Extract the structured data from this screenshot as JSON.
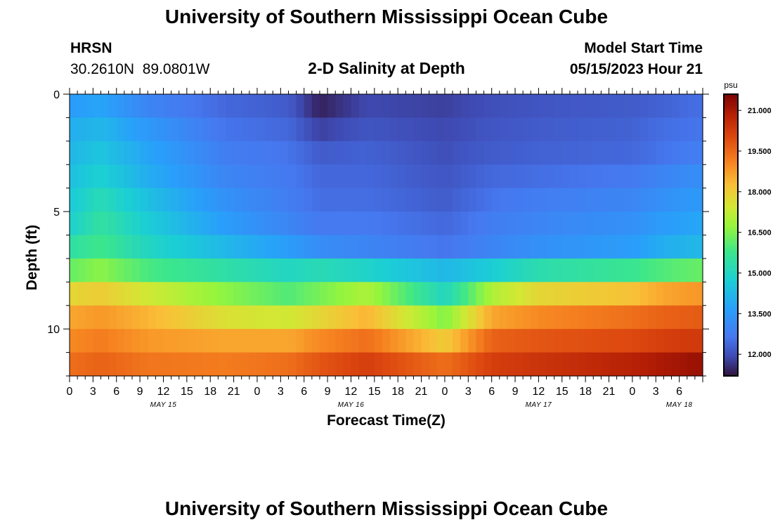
{
  "page": {
    "title": "University of Southern Mississippi Ocean Cube",
    "station_id": "HRSN",
    "coordinates": "30.2610N  89.0801W",
    "model_start_label": "Model Start Time",
    "model_start_value": "05/15/2023 Hour 21",
    "subtitle": "2-D Salinity at Depth",
    "footer_title": "University of Southern Mississippi Ocean Cube"
  },
  "chart_data": {
    "type": "heatmap",
    "title": "2-D Salinity at Depth",
    "xlabel": "Forecast Time(Z)",
    "ylabel": "Depth (ft)",
    "x_range_hours_from_start": [
      0,
      81
    ],
    "y_range_ft": [
      0,
      12
    ],
    "y_reversed": true,
    "x_tick_labels": [
      "0",
      "3",
      "6",
      "9",
      "12",
      "15",
      "18",
      "21",
      "0",
      "3",
      "6",
      "9",
      "12",
      "15",
      "18",
      "21",
      "0",
      "3",
      "6",
      "9",
      "12",
      "15",
      "18",
      "21",
      "0",
      "3",
      "6"
    ],
    "date_labels": [
      {
        "label": "MAY 15",
        "hour": 12
      },
      {
        "label": "MAY 16",
        "hour": 36
      },
      {
        "label": "MAY 17",
        "hour": 60
      },
      {
        "label": "MAY 18",
        "hour": 78
      }
    ],
    "y_tick_labels": [
      {
        "label": "0",
        "depth": 0
      },
      {
        "label": "5",
        "depth": 5
      },
      {
        "label": "10",
        "depth": 10
      }
    ],
    "colorbar": {
      "unit": "psu",
      "min": 11.2,
      "max": 21.6,
      "tick_labels": [
        "21.000",
        "19.500",
        "18.000",
        "16.500",
        "15.000",
        "13.500",
        "12.000"
      ],
      "tick_values": [
        21.0,
        19.5,
        18.0,
        16.5,
        15.0,
        13.5,
        12.0
      ]
    },
    "series": [
      {
        "depth_ft": 0.5,
        "times_h": [
          0,
          4,
          10,
          20,
          28,
          32,
          38,
          48,
          54,
          60,
          72,
          76,
          80
        ],
        "salinity": [
          13.6,
          13.8,
          13.0,
          12.4,
          12.2,
          11.4,
          11.9,
          11.8,
          12.0,
          12.1,
          12.2,
          12.3,
          12.5
        ]
      },
      {
        "depth_ft": 1.5,
        "times_h": [
          0,
          4,
          10,
          20,
          28,
          32,
          38,
          48,
          54,
          60,
          72,
          76,
          80
        ],
        "salinity": [
          14.0,
          14.2,
          13.5,
          12.6,
          12.4,
          11.8,
          12.1,
          11.9,
          12.1,
          12.2,
          12.3,
          12.5,
          12.6
        ]
      },
      {
        "depth_ft": 2.5,
        "times_h": [
          0,
          4,
          10,
          20,
          28,
          32,
          38,
          48,
          54,
          60,
          72,
          76,
          80
        ],
        "salinity": [
          14.2,
          14.5,
          13.8,
          12.8,
          12.6,
          12.2,
          12.3,
          12.0,
          12.2,
          12.3,
          12.4,
          12.6,
          12.8
        ]
      },
      {
        "depth_ft": 3.5,
        "times_h": [
          0,
          4,
          10,
          20,
          28,
          32,
          38,
          48,
          54,
          60,
          72,
          76,
          80
        ],
        "salinity": [
          14.4,
          14.8,
          14.0,
          13.0,
          12.7,
          12.4,
          12.4,
          12.1,
          12.4,
          12.5,
          12.7,
          13.0,
          13.2
        ]
      },
      {
        "depth_ft": 4.5,
        "times_h": [
          0,
          4,
          10,
          20,
          28,
          32,
          38,
          48,
          54,
          60,
          72,
          76,
          80
        ],
        "salinity": [
          14.6,
          15.2,
          14.4,
          13.3,
          12.8,
          12.5,
          12.5,
          12.2,
          12.6,
          12.8,
          13.0,
          13.3,
          13.5
        ]
      },
      {
        "depth_ft": 5.5,
        "times_h": [
          0,
          4,
          10,
          20,
          28,
          32,
          38,
          48,
          54,
          60,
          72,
          76,
          80
        ],
        "salinity": [
          14.8,
          15.5,
          14.7,
          13.6,
          13.0,
          12.7,
          12.7,
          12.4,
          12.8,
          13.0,
          13.3,
          13.6,
          13.8
        ]
      },
      {
        "depth_ft": 6.5,
        "times_h": [
          0,
          4,
          10,
          20,
          28,
          32,
          38,
          48,
          54,
          60,
          72,
          76,
          80
        ],
        "salinity": [
          15.4,
          15.8,
          15.0,
          14.2,
          13.6,
          13.2,
          13.0,
          12.6,
          13.0,
          13.3,
          13.6,
          14.0,
          14.2
        ]
      },
      {
        "depth_ft": 7.5,
        "times_h": [
          0,
          4,
          10,
          20,
          28,
          32,
          38,
          48,
          54,
          60,
          72,
          76,
          80
        ],
        "salinity": [
          16.2,
          16.6,
          15.9,
          15.4,
          15.0,
          15.2,
          14.9,
          14.2,
          14.7,
          15.3,
          15.7,
          16.0,
          16.2
        ]
      },
      {
        "depth_ft": 8.5,
        "times_h": [
          0,
          4,
          10,
          20,
          28,
          32,
          38,
          48,
          54,
          60,
          72,
          76,
          80
        ],
        "salinity": [
          17.8,
          18.0,
          17.4,
          16.6,
          16.0,
          16.4,
          17.0,
          15.0,
          17.0,
          17.8,
          18.2,
          18.6,
          18.8
        ]
      },
      {
        "depth_ft": 9.5,
        "times_h": [
          0,
          4,
          10,
          20,
          28,
          32,
          38,
          48,
          54,
          60,
          72,
          76,
          80
        ],
        "salinity": [
          18.6,
          18.8,
          18.4,
          17.6,
          17.4,
          17.8,
          18.4,
          16.5,
          18.6,
          19.0,
          19.4,
          19.6,
          19.7
        ]
      },
      {
        "depth_ft": 10.5,
        "times_h": [
          0,
          4,
          10,
          20,
          28,
          32,
          38,
          48,
          54,
          60,
          72,
          76,
          80
        ],
        "salinity": [
          19.0,
          19.2,
          18.8,
          18.6,
          18.6,
          19.0,
          19.4,
          18.0,
          19.6,
          19.8,
          20.0,
          20.2,
          20.3
        ]
      },
      {
        "depth_ft": 11.5,
        "times_h": [
          0,
          4,
          10,
          20,
          28,
          32,
          38,
          48,
          54,
          60,
          72,
          76,
          80
        ],
        "salinity": [
          19.4,
          19.6,
          19.3,
          19.2,
          19.4,
          19.8,
          20.2,
          19.4,
          20.2,
          20.4,
          20.8,
          21.0,
          21.2
        ]
      }
    ]
  }
}
